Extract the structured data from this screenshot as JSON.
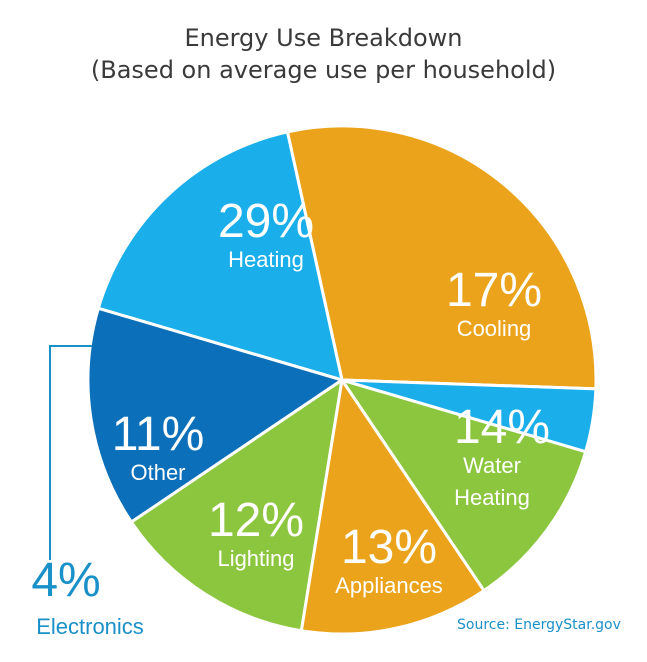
{
  "title": "Energy Use Breakdown",
  "subtitle": "(Based on average use per household)",
  "source": "Source: EnergyStar.gov",
  "colors": {
    "orange": "#eba31b",
    "green": "#8cc63f",
    "light_blue": "#1aaeeb",
    "dark_blue": "#0b6fba",
    "electronics_text": "#1a90c9"
  },
  "chart_data": {
    "type": "pie",
    "unit": "%",
    "slices": [
      {
        "name": "Heating",
        "percent_label": "29%",
        "value": 29,
        "color": "#eba31b"
      },
      {
        "name": "Cooling",
        "percent_label": "17%",
        "value": 17,
        "color": "#1aaeeb"
      },
      {
        "name": "Water Heating",
        "percent_label": "14%",
        "value": 14,
        "color": "#0b6fba"
      },
      {
        "name": "Appliances",
        "percent_label": "13%",
        "value": 13,
        "color": "#8cc63f"
      },
      {
        "name": "Lighting",
        "percent_label": "12%",
        "value": 12,
        "color": "#eba31b"
      },
      {
        "name": "Other",
        "percent_label": "11%",
        "value": 11,
        "color": "#8cc63f"
      },
      {
        "name": "Electronics",
        "percent_label": "4%",
        "value": 4,
        "color": "#1aaeeb"
      }
    ]
  }
}
